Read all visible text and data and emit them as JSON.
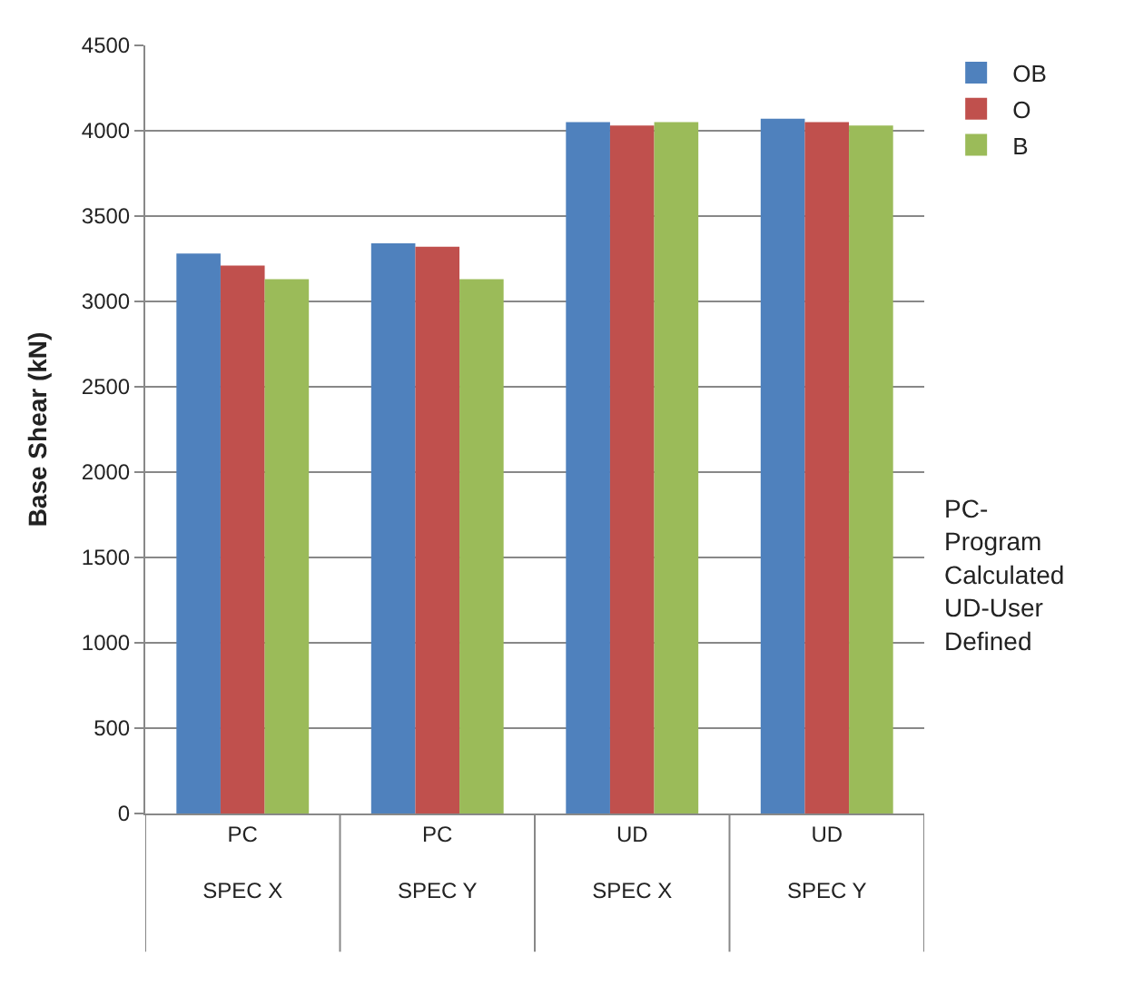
{
  "chart_data": {
    "type": "bar",
    "ylabel": "Base Shear (kN)",
    "categories": [
      "PC\nSPEC X",
      "PC\nSPEC Y",
      "UD\nSPEC X",
      "UD\nSPEC Y"
    ],
    "series": [
      {
        "name": "OB",
        "color": "#4f81bd",
        "values": [
          3280,
          3340,
          4050,
          4070
        ]
      },
      {
        "name": "O",
        "color": "#c0504d",
        "values": [
          3210,
          3320,
          4030,
          4050
        ]
      },
      {
        "name": "B",
        "color": "#9bbb59",
        "values": [
          3130,
          3130,
          4050,
          4030
        ]
      }
    ],
    "ylim": [
      0,
      4500
    ],
    "yticks": [
      0,
      500,
      1000,
      1500,
      2000,
      2500,
      3000,
      3500,
      4000,
      4500
    ],
    "grid": "y",
    "legend": "right",
    "annotations": [
      "PC-\nProgram\nCalculated\nUD-User\nDefined"
    ]
  }
}
